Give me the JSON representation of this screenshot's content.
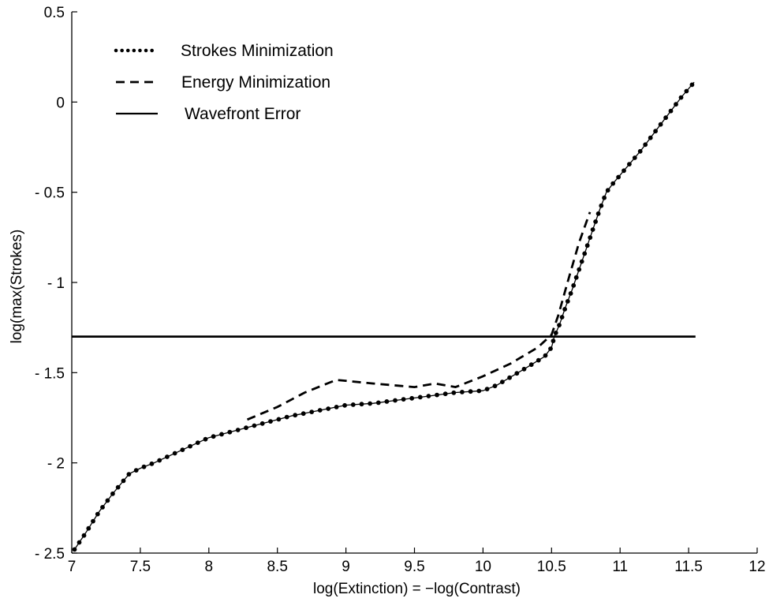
{
  "chart_data": {
    "type": "line",
    "title": "",
    "xlabel": "log(Extinction) = −log(Contrast)",
    "ylabel": "log(max(Strokes)",
    "xlim": [
      7,
      12
    ],
    "ylim": [
      -2.5,
      0.5
    ],
    "grid": false,
    "legend_position": "top-left",
    "x_ticks": [
      7,
      7.5,
      8,
      8.5,
      9,
      9.5,
      10,
      10.5,
      11,
      11.5,
      12
    ],
    "x_tick_labels": [
      "7",
      "7.5",
      "8",
      "8.5",
      "9",
      "9.5",
      "10",
      "10.5",
      "11",
      "11.5",
      "12"
    ],
    "y_ticks": [
      0.5,
      0,
      -0.5,
      -1,
      -1.5,
      -2,
      -2.5
    ],
    "y_tick_labels": [
      "0.5",
      "0",
      "- 0.5",
      "- 1",
      "- 1.5",
      "- 2",
      "- 2.5"
    ],
    "series": [
      {
        "name": "Strokes Minimization",
        "style": "dotted",
        "markers": true,
        "color": "#000000",
        "x": [
          7.02,
          7.1,
          7.2,
          7.3,
          7.42,
          7.5,
          7.6,
          7.8,
          8.0,
          8.2,
          8.4,
          8.6,
          8.8,
          9.0,
          9.2,
          9.4,
          9.6,
          9.8,
          10.0,
          10.1,
          10.3,
          10.45,
          10.5,
          10.52,
          10.56,
          10.6,
          10.65,
          10.7,
          10.75,
          10.8,
          10.85,
          10.9,
          10.95,
          11.05,
          11.15,
          11.25,
          11.35,
          11.45,
          11.54
        ],
        "y": [
          -2.48,
          -2.39,
          -2.27,
          -2.17,
          -2.06,
          -2.03,
          -2.0,
          -1.93,
          -1.86,
          -1.82,
          -1.78,
          -1.74,
          -1.71,
          -1.68,
          -1.67,
          -1.65,
          -1.63,
          -1.61,
          -1.6,
          -1.57,
          -1.48,
          -1.41,
          -1.36,
          -1.3,
          -1.23,
          -1.14,
          -1.04,
          -0.93,
          -0.82,
          -0.71,
          -0.6,
          -0.5,
          -0.45,
          -0.36,
          -0.27,
          -0.17,
          -0.07,
          0.03,
          0.11
        ]
      },
      {
        "name": "Energy Minimization",
        "style": "dashed",
        "markers": false,
        "color": "#000000",
        "x": [
          8.28,
          8.5,
          8.7,
          8.93,
          9.2,
          9.5,
          9.65,
          9.8,
          10.0,
          10.2,
          10.4,
          10.5,
          10.55,
          10.62,
          10.7,
          10.78
        ],
        "y": [
          -1.76,
          -1.69,
          -1.61,
          -1.54,
          -1.56,
          -1.58,
          -1.56,
          -1.58,
          -1.52,
          -1.45,
          -1.36,
          -1.29,
          -1.18,
          -0.99,
          -0.78,
          -0.61
        ]
      },
      {
        "name": "Wavefront Error",
        "style": "solid",
        "markers": false,
        "color": "#000000",
        "x": [
          7.0,
          11.55
        ],
        "y": [
          -1.3,
          -1.3
        ]
      }
    ]
  }
}
